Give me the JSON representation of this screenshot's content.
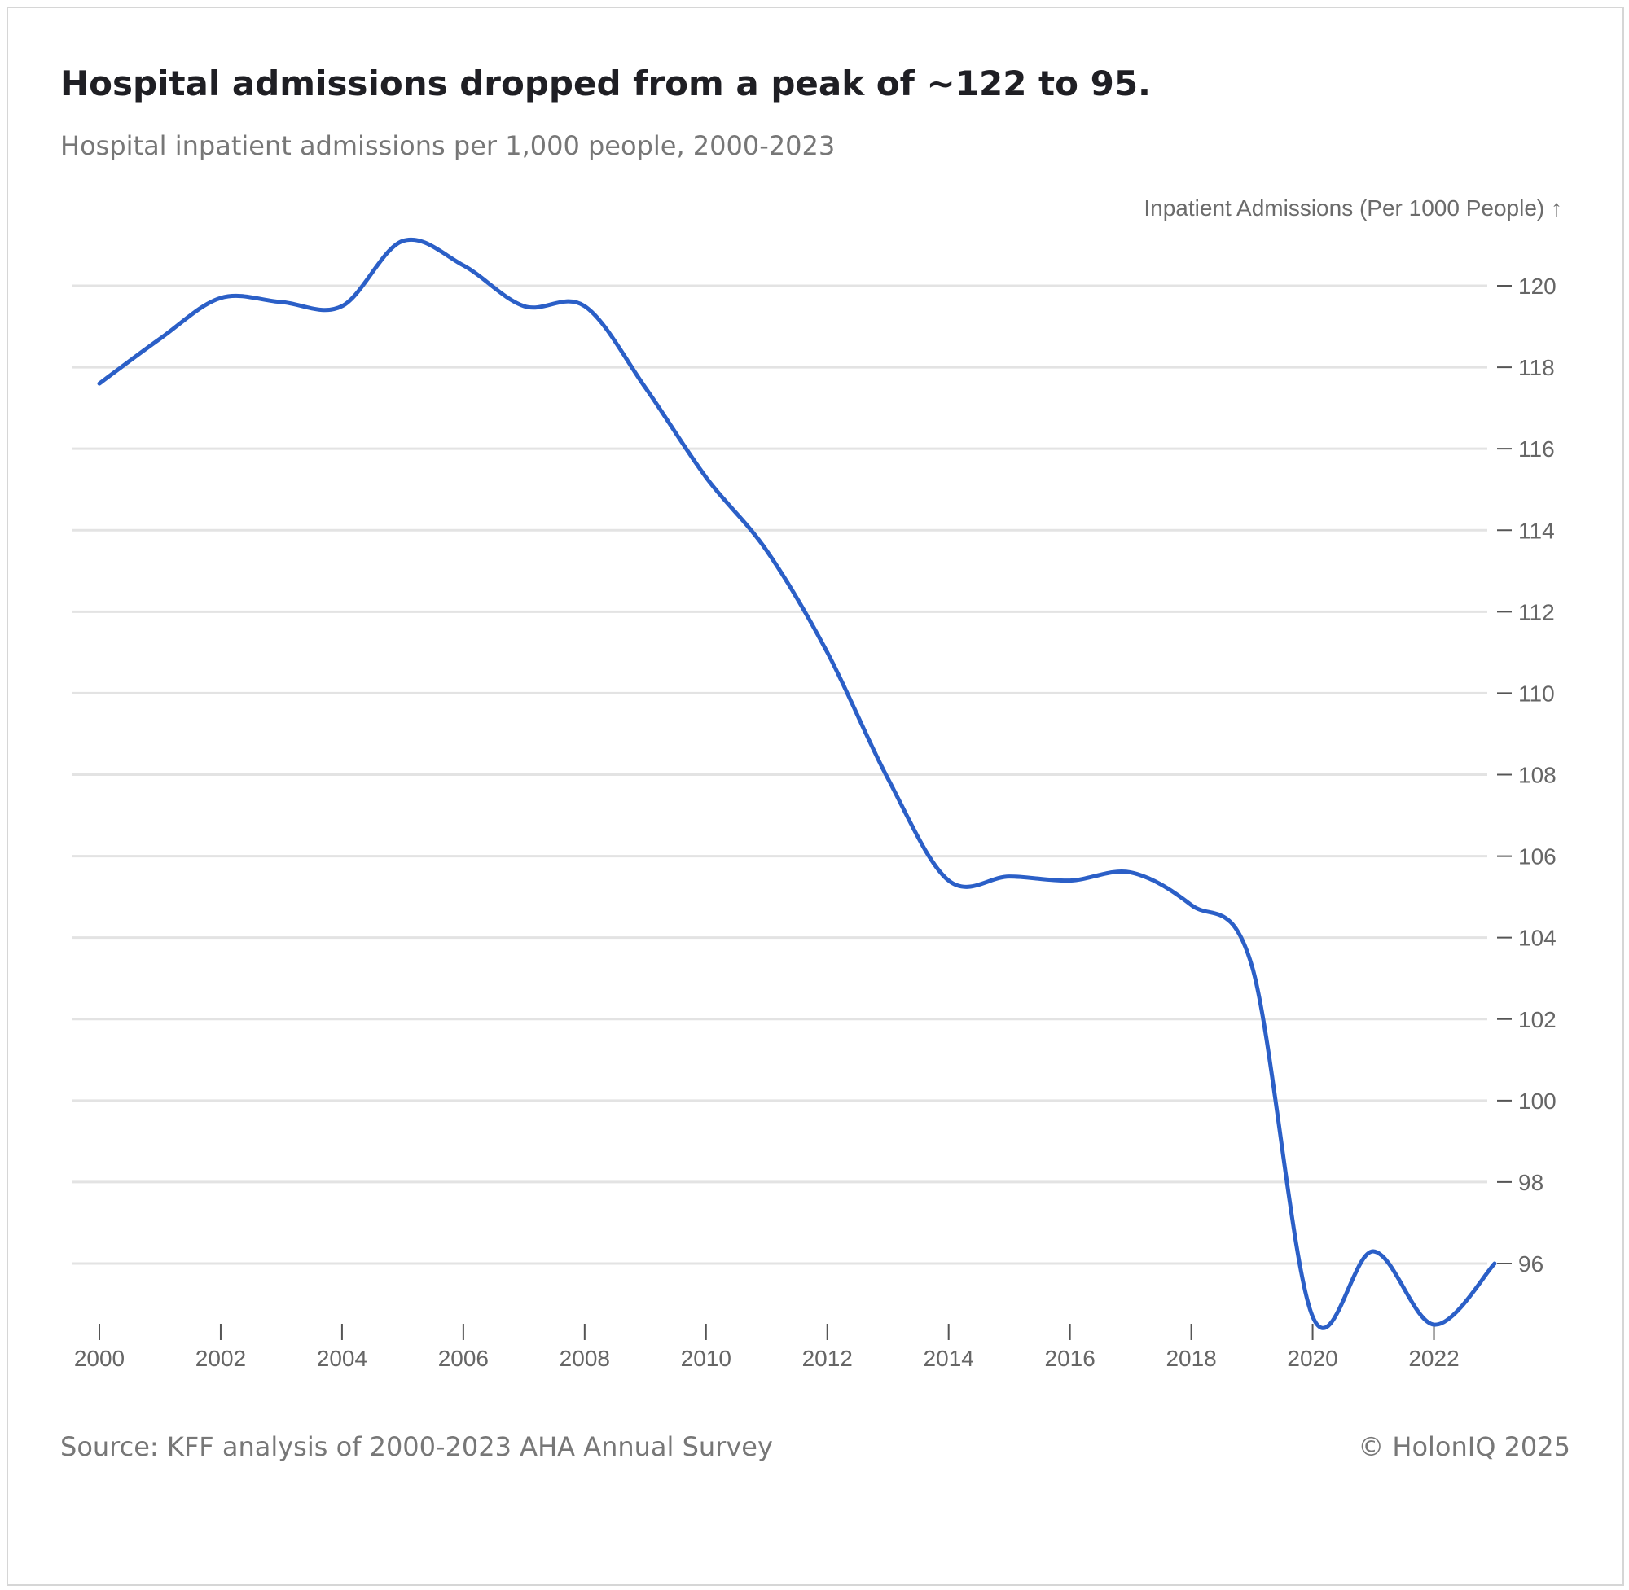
{
  "header": {
    "title": "Hospital admissions dropped from a peak of ~122 to 95.",
    "subtitle": "Hospital inpatient admissions per 1,000 people, 2000-2023"
  },
  "footer": {
    "source": "Source: KFF analysis of 2000-2023 AHA Annual Survey",
    "copyright": "© HolonIQ 2025"
  },
  "colors": {
    "line": "#2b5fc7",
    "grid": "#e3e3e3",
    "tick": "#555555"
  },
  "chart_data": {
    "type": "line",
    "title": "Hospital admissions dropped from a peak of ~122 to 95.",
    "subtitle": "Hospital inpatient admissions per 1,000 people, 2000-2023",
    "xlabel": "",
    "ylabel": "Inpatient Admissions (Per 1000 People) ↑",
    "ylim": [
      94.3,
      122
    ],
    "xlim": [
      2000,
      2023
    ],
    "grid": true,
    "y_ticks": [
      96,
      98,
      100,
      102,
      104,
      106,
      108,
      110,
      112,
      114,
      116,
      118,
      120
    ],
    "x_ticks": [
      2000,
      2002,
      2004,
      2006,
      2008,
      2010,
      2012,
      2014,
      2016,
      2018,
      2020,
      2022
    ],
    "series": [
      {
        "name": "Inpatient Admissions (Per 1000 People)",
        "x": [
          2000,
          2001,
          2002,
          2003,
          2004,
          2005,
          2006,
          2007,
          2008,
          2009,
          2010,
          2011,
          2012,
          2013,
          2014,
          2015,
          2016,
          2017,
          2018,
          2019,
          2020,
          2021,
          2022,
          2023
        ],
        "values": [
          117.6,
          118.7,
          119.7,
          119.6,
          119.5,
          121.1,
          120.5,
          119.5,
          119.5,
          117.5,
          115.3,
          113.5,
          111.0,
          107.9,
          105.4,
          105.5,
          105.4,
          105.6,
          104.8,
          103.3,
          94.7,
          96.3,
          94.5,
          96.0
        ]
      }
    ]
  }
}
